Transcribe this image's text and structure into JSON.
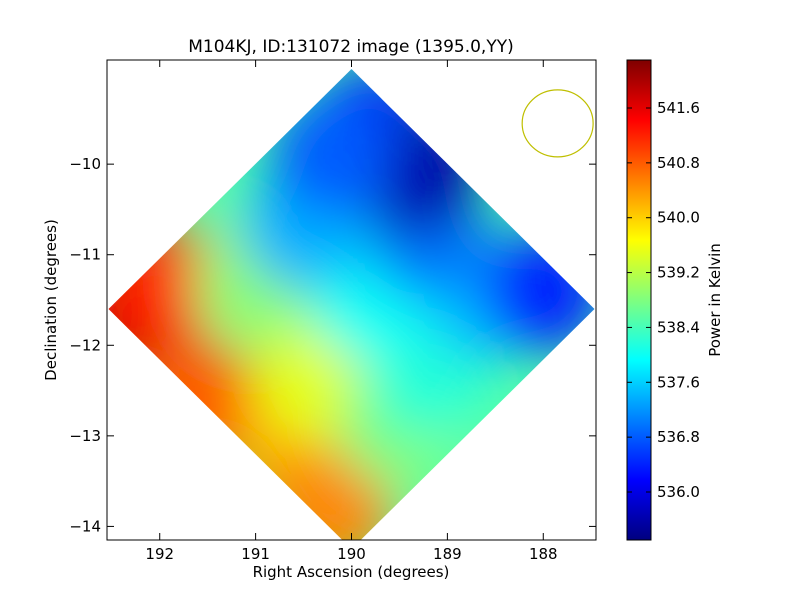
{
  "chart_data": {
    "type": "heatmap",
    "title": "M104KJ, ID:131072 image (1395.0,YY)",
    "xlabel": "Right Ascension (degrees)",
    "ylabel": "Declination (degrees)",
    "colorbar_label": "Power in Kelvin",
    "xlim": [
      192.55,
      187.45
    ],
    "ylim": [
      -14.15,
      -8.85
    ],
    "x_ticks": [
      192,
      191,
      190,
      189,
      188
    ],
    "y_ticks": [
      -10,
      -11,
      -12,
      -13,
      -14
    ],
    "x_tick_labels": [
      "192",
      "191",
      "190",
      "189",
      "188"
    ],
    "y_tick_labels": [
      "−10",
      "−11",
      "−12",
      "−13",
      "−14"
    ],
    "colorbar_range": [
      535.3,
      542.3
    ],
    "colorbar_ticks": [
      536.0,
      536.8,
      537.6,
      538.4,
      539.2,
      540.0,
      540.8,
      541.6
    ],
    "colorbar_tick_labels": [
      "536.0",
      "536.8",
      "537.6",
      "538.4",
      "539.2",
      "540.0",
      "540.8",
      "541.6"
    ],
    "colormap": "jet",
    "colormap_stops": [
      "#00007f",
      "#0000ff",
      "#007fff",
      "#00ffff",
      "#7fff7f",
      "#ffff00",
      "#ff7f00",
      "#ff0000",
      "#7f0000"
    ],
    "map_footprint": "diamond",
    "field_center": [
      190.0,
      -11.6
    ],
    "temperature_samples": [
      {
        "ra": 192.4,
        "dec": -11.7,
        "value": 541.8
      },
      {
        "ra": 192.0,
        "dec": -11.3,
        "value": 541.2
      },
      {
        "ra": 191.6,
        "dec": -12.6,
        "value": 540.8
      },
      {
        "ra": 190.6,
        "dec": -13.2,
        "value": 540.3
      },
      {
        "ra": 190.2,
        "dec": -13.8,
        "value": 540.5
      },
      {
        "ra": 190.4,
        "dec": -12.4,
        "value": 539.5
      },
      {
        "ra": 191.0,
        "dec": -11.3,
        "value": 538.9
      },
      {
        "ra": 189.5,
        "dec": -12.9,
        "value": 538.8
      },
      {
        "ra": 189.2,
        "dec": -12.3,
        "value": 538.2
      },
      {
        "ra": 189.8,
        "dec": -11.5,
        "value": 538.0
      },
      {
        "ra": 190.5,
        "dec": -10.7,
        "value": 537.4
      },
      {
        "ra": 188.6,
        "dec": -11.5,
        "value": 537.5
      },
      {
        "ra": 188.0,
        "dec": -11.4,
        "value": 536.4
      },
      {
        "ra": 189.2,
        "dec": -10.8,
        "value": 537.0
      },
      {
        "ra": 189.8,
        "dec": -9.6,
        "value": 536.2
      },
      {
        "ra": 189.3,
        "dec": -10.1,
        "value": 535.6
      },
      {
        "ra": 190.2,
        "dec": -9.9,
        "value": 536.8
      }
    ],
    "beam": {
      "ra": 187.85,
      "dec": -9.55,
      "radius_ra": 0.37,
      "radius_dec": 0.37,
      "color": "#bfbf00"
    },
    "grid": false,
    "legend": "none"
  }
}
